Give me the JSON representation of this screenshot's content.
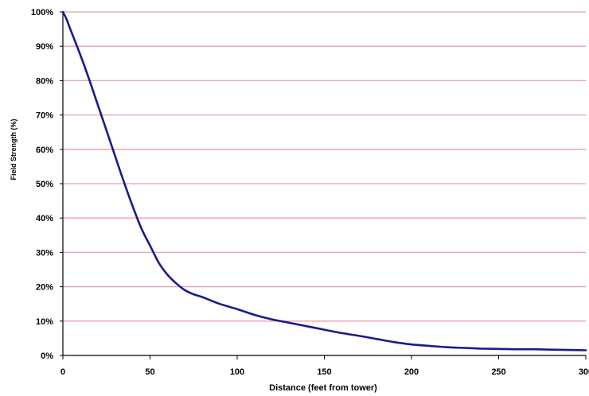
{
  "chart_data": {
    "type": "line",
    "title": "",
    "xlabel": "Distance (feet from tower)",
    "ylabel": "Field Strength (%)",
    "xlim": [
      0,
      300
    ],
    "ylim": [
      0,
      100
    ],
    "x_ticks": [
      "0",
      "50",
      "100",
      "150",
      "200",
      "250",
      "300"
    ],
    "y_ticks": [
      "0%",
      "10%",
      "20%",
      "30%",
      "40%",
      "50%",
      "60%",
      "70%",
      "80%",
      "90%",
      "100%"
    ],
    "grid": "horizontal",
    "legend": "none",
    "colors": {
      "line": "#1a1a8c",
      "grid": "#e8a0a8",
      "axis": "#000000"
    },
    "series": [
      {
        "x": [
          0,
          2,
          5,
          10,
          15,
          20,
          25,
          30,
          35,
          40,
          45,
          50,
          55,
          60,
          65,
          70,
          75,
          80,
          90,
          100,
          110,
          120,
          130,
          140,
          150,
          160,
          170,
          180,
          190,
          200,
          210,
          220,
          230,
          240,
          250,
          260,
          270,
          280,
          290,
          300
        ],
        "y": [
          100,
          98,
          94,
          87.5,
          80.5,
          73,
          65.5,
          58,
          50.5,
          43.5,
          37,
          32,
          27,
          23.5,
          21,
          19,
          17.8,
          17,
          15,
          13.5,
          11.8,
          10.5,
          9.5,
          8.5,
          7.5,
          6.5,
          5.7,
          4.8,
          3.9,
          3.2,
          2.8,
          2.4,
          2.2,
          2.0,
          1.9,
          1.8,
          1.8,
          1.7,
          1.6,
          1.5
        ]
      }
    ]
  }
}
